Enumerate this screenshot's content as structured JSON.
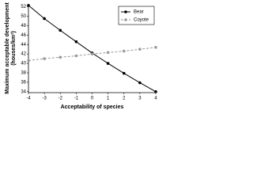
{
  "chart_data": {
    "type": "line",
    "x_label": "Acceptability of species",
    "y_label": [
      "Maximum acceptable development",
      "(houses/km²)"
    ],
    "x": [
      -4,
      -3,
      -2,
      -1,
      0,
      1,
      2,
      3,
      4
    ],
    "series": [
      {
        "name": "Bear",
        "color": "#000000",
        "dashed": false,
        "values": [
          52.3,
          49.5,
          47.0,
          44.6,
          42.2,
          40.0,
          37.9,
          35.9,
          34.0
        ]
      },
      {
        "name": "Coyote",
        "color": "#999999",
        "dashed": true,
        "values": [
          40.6,
          41.0,
          41.3,
          41.6,
          42.0,
          42.3,
          42.6,
          43.0,
          43.4
        ]
      }
    ],
    "xlim": [
      -4,
      4
    ],
    "xticks": [
      -4,
      -3,
      -2,
      -1,
      0,
      1,
      2,
      3,
      4
    ],
    "ylim": [
      33.8,
      52.6
    ],
    "yticks": [
      34,
      36,
      38,
      40,
      42,
      44,
      46,
      48,
      50,
      52
    ],
    "legend": "top-right"
  }
}
